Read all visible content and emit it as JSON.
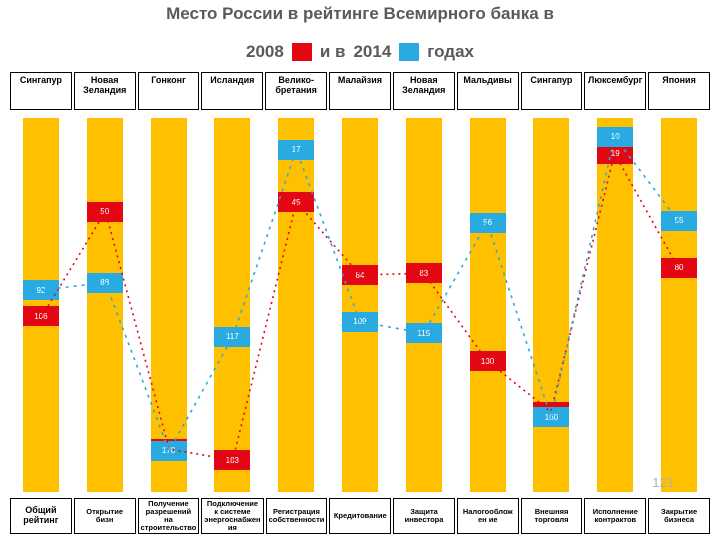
{
  "title": "Место России в рейтинге Всемирного банка в",
  "subtitle": {
    "year1": "2008",
    "mid": "и  в",
    "year2": "2014",
    "tail": "годах"
  },
  "colors": {
    "red": "#e30613",
    "blue": "#29abe2",
    "yellow": "#ffc000"
  },
  "chart": {
    "yDomain": [
      0,
      200
    ],
    "columns": [
      {
        "top": "Сингапур",
        "bottom": "Общий рейтинг",
        "red": 106,
        "blue": 92
      },
      {
        "top": "Новая Зеландия",
        "bottom": "Открытие бизн",
        "red": 50,
        "blue": 88
      },
      {
        "top": "Гонконг",
        "bottom": "Получение разрешений на строительство",
        "red": 177,
        "blue": 178
      },
      {
        "top": "Исландия",
        "bottom": "Подключение к системе энергоснабжен ия",
        "red": 183,
        "blue": 117
      },
      {
        "top": "Велико-бретания",
        "bottom": "Регистрация собственности",
        "red": 45,
        "blue": 17
      },
      {
        "top": "Малайзия",
        "bottom": "Кредитование",
        "red": 84,
        "blue": 109
      },
      {
        "top": "Новая Зеландия",
        "bottom": "Защита инвестора",
        "red": 83,
        "blue": 115
      },
      {
        "top": "Мальдивы",
        "bottom": "Налогооблож ен ие",
        "red": 130,
        "blue": 56
      },
      {
        "top": "Сингапур",
        "bottom": "Внешняя торговля",
        "red": 157,
        "blue": 160
      },
      {
        "top": "Люксембург",
        "bottom": "Исполнение контрактов",
        "red": 19,
        "blue": 10
      },
      {
        "top": "Япония",
        "bottom": "Закрытие бизнеса",
        "red": 80,
        "blue": 55
      }
    ]
  },
  "pageNumber": "121",
  "style": {
    "segmentHeight": 20,
    "lineDashRed": "2,4",
    "lineDashBlue": "3,5",
    "lineWidth": 1.6
  }
}
